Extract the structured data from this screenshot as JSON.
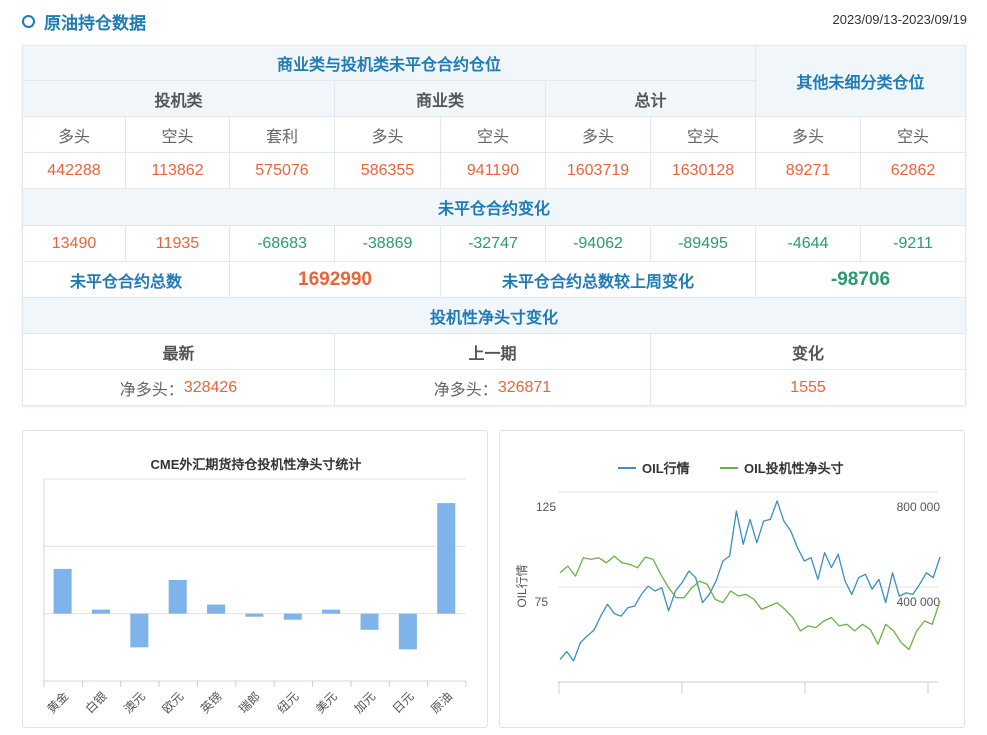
{
  "header": {
    "title": "原油持仓数据",
    "date_range": "2023/09/13-2023/09/19",
    "icon": "circle-icon"
  },
  "table": {
    "group_title": "商业类与投机类未平仓合约仓位",
    "other_title": "其他未细分类仓位",
    "spec": "投机类",
    "comm": "商业类",
    "total": "总计",
    "sub": [
      "多头",
      "空头",
      "套利",
      "多头",
      "空头",
      "多头",
      "空头",
      "多头",
      "空头"
    ],
    "positions": [
      "442288",
      "113862",
      "575076",
      "586355",
      "941190",
      "1603719",
      "1630128",
      "89271",
      "62862"
    ],
    "change_title": "未平仓合约变化",
    "changes": [
      "13490",
      "11935",
      "-68683",
      "-38869",
      "-32747",
      "-94062",
      "-89495",
      "-4644",
      "-9211"
    ],
    "oi_total_label": "未平仓合约总数",
    "oi_total": "1692990",
    "oi_change_label": "未平仓合约总数较上周变化",
    "oi_change": "-98706",
    "net_title": "投机性净头寸变化",
    "net_cols": [
      "最新",
      "上一期",
      "变化"
    ],
    "net_prefix": "净多头：",
    "net_latest": "328426",
    "net_prev": "326871",
    "net_change": "1555"
  },
  "colors": {
    "accent": "#1f7bb5",
    "positive": "#e8643c",
    "negative": "#2b9a72",
    "bar": "#7eb4ea",
    "oil": "#3a8fc4",
    "net": "#6bb04a"
  },
  "chart_data": [
    {
      "type": "bar",
      "title": "CME外汇期货持仓投机性净头寸统计",
      "categories": [
        "黄金",
        "白银",
        "澳元",
        "欧元",
        "英镑",
        "瑞郎",
        "纽元",
        "美元",
        "加元",
        "日元",
        "原油"
      ],
      "values": [
        133000,
        12000,
        -100000,
        100000,
        27000,
        -9000,
        -18000,
        12000,
        -48000,
        -106000,
        328426
      ],
      "ylim": [
        -200000,
        400000
      ],
      "grid": true
    },
    {
      "type": "line",
      "ylabel": "OIL行情",
      "legend": [
        "OIL行情",
        "OIL投机性净头寸"
      ],
      "legend_position": "top",
      "y_left": {
        "range": [
          25,
          125
        ],
        "ticks": [
          "125",
          "75"
        ]
      },
      "y_right": {
        "range": [
          0,
          800000
        ],
        "ticks": [
          "800 000",
          "400 000"
        ]
      },
      "series": [
        {
          "name": "OIL行情",
          "axis": "left",
          "values": [
            36.9,
            41,
            36.1,
            45.7,
            49.2,
            52.2,
            59.7,
            65.9,
            61,
            59.7,
            64.1,
            65,
            71.1,
            75.5,
            72.9,
            74.6,
            62.4,
            72.9,
            77.3,
            83.4,
            79.9,
            66.8,
            71.1,
            78.2,
            88.7,
            91.3,
            115,
            97.5,
            110.6,
            98.3,
            109.7,
            110.6,
            120.3,
            109.7,
            104.5,
            95.7,
            88.7,
            90.4,
            79,
            93.1,
            85.2,
            92.2,
            78.2,
            71.1,
            79.9,
            81.7,
            73.8,
            79,
            66.8,
            82.5,
            70.2,
            71.9,
            71.1,
            76.4,
            82.5,
            79.9,
            90.8
          ]
        },
        {
          "name": "OIL投机性净头寸",
          "axis": "right",
          "values": [
            460000,
            488000,
            446000,
            523000,
            516000,
            523000,
            502000,
            530000,
            502000,
            495000,
            481000,
            526000,
            516000,
            453000,
            397000,
            355000,
            355000,
            397000,
            425000,
            411000,
            348000,
            334000,
            383000,
            362000,
            369000,
            348000,
            306000,
            320000,
            334000,
            306000,
            271000,
            215000,
            236000,
            229000,
            257000,
            271000,
            236000,
            243000,
            215000,
            243000,
            222000,
            159000,
            243000,
            215000,
            166000,
            137000,
            215000,
            257000,
            243000,
            341000
          ]
        }
      ]
    }
  ]
}
